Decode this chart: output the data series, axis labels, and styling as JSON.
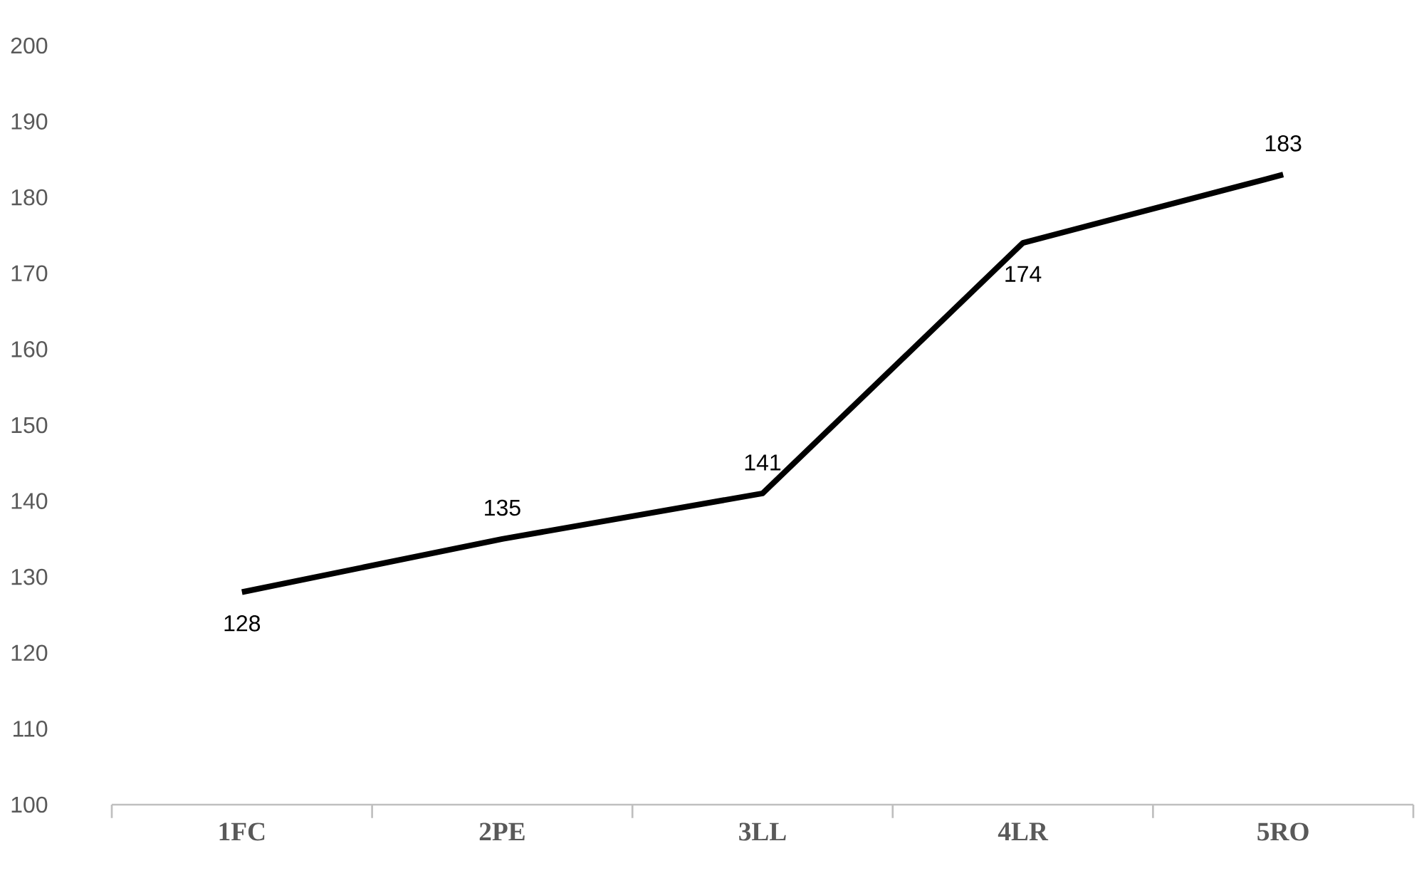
{
  "chart_data": {
    "type": "line",
    "categories": [
      "1FC",
      "2PE",
      "3LL",
      "4LR",
      "5RO"
    ],
    "series": [
      {
        "color": "#000000",
        "values": [
          128,
          135,
          141,
          174,
          183
        ]
      }
    ],
    "ylim": [
      100,
      200
    ],
    "yticks": [
      100,
      110,
      120,
      130,
      140,
      150,
      160,
      170,
      180,
      190,
      200
    ],
    "data_labels": true
  }
}
